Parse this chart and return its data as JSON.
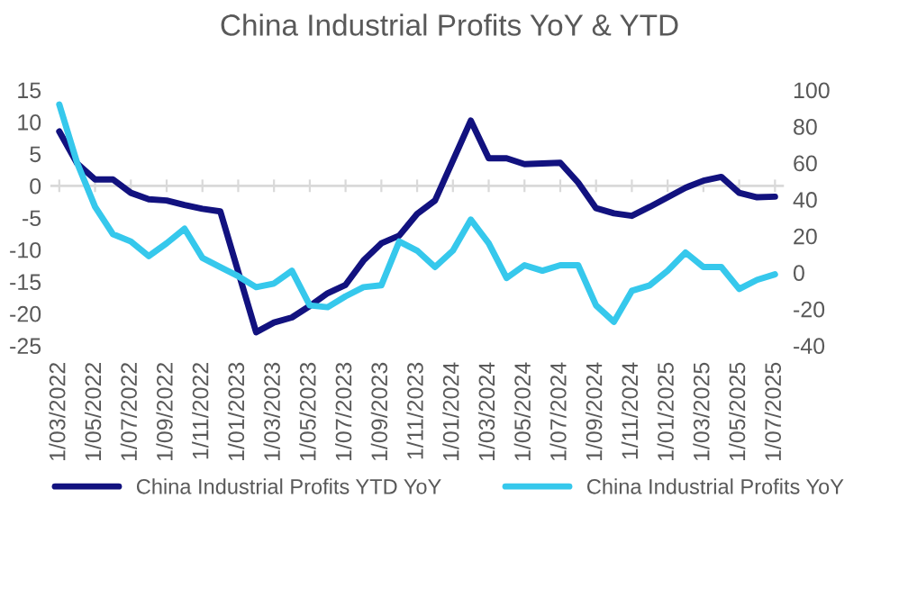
{
  "chart_data": {
    "type": "line",
    "title": "China Industrial Profits YoY & YTD",
    "categories": [
      "1/03/2022",
      null,
      "1/05/2022",
      null,
      "1/07/2022",
      null,
      "1/09/2022",
      null,
      "1/11/2022",
      null,
      "1/01/2023",
      null,
      "1/03/2023",
      null,
      "1/05/2023",
      null,
      "1/07/2023",
      null,
      "1/09/2023",
      null,
      "1/11/2023",
      null,
      "1/01/2024",
      null,
      "1/03/2024",
      null,
      "1/05/2024",
      null,
      "1/07/2024",
      null,
      "1/09/2024",
      null,
      "1/11/2024",
      null,
      "1/01/2025",
      null,
      "1/03/2025",
      null,
      "1/05/2025",
      null,
      "1/07/2025"
    ],
    "series": [
      {
        "name": "China Industrial Profits YTD YoY",
        "color": "#12127f",
        "values": [
          8.5,
          3.5,
          1.0,
          1.0,
          -1.1,
          -2.1,
          -2.3,
          -3.0,
          -3.6,
          -4.0,
          null,
          -22.9,
          -21.4,
          -20.6,
          -18.8,
          -16.8,
          -15.5,
          -11.7,
          -9.0,
          -7.8,
          -4.4,
          -2.3,
          null,
          10.2,
          4.3,
          4.3,
          3.4,
          3.5,
          3.6,
          0.5,
          -3.5,
          -4.3,
          -4.7,
          -3.3,
          null,
          -0.3,
          0.8,
          1.4,
          -1.1,
          -1.8,
          -1.7
        ]
      },
      {
        "name": "China Industrial Profits YoY",
        "color": "#36c8ec",
        "axis": "y2",
        "values": [
          92,
          60,
          36,
          21,
          17,
          9,
          16,
          24,
          8,
          3,
          -2,
          -8,
          -6,
          1,
          -18,
          -19,
          -13,
          -8,
          -7,
          17,
          12,
          3,
          12,
          29,
          16,
          -3,
          4,
          1,
          4,
          4,
          -18,
          -27,
          -10,
          -7,
          1,
          11,
          3,
          3,
          -9,
          -4,
          -1
        ]
      }
    ],
    "ref_lines": [
      {
        "axis": "y",
        "value": 0,
        "color": "#d9d9d9"
      }
    ],
    "ylim": [
      -25,
      15
    ],
    "yticks": [
      -25,
      -20,
      -15,
      -10,
      -5,
      0,
      5,
      10,
      15
    ],
    "y2lim": [
      -40,
      100
    ],
    "y2ticks": [
      -40,
      -20,
      0,
      20,
      40,
      60,
      80,
      100
    ],
    "legend": "bottom",
    "grid": false
  }
}
